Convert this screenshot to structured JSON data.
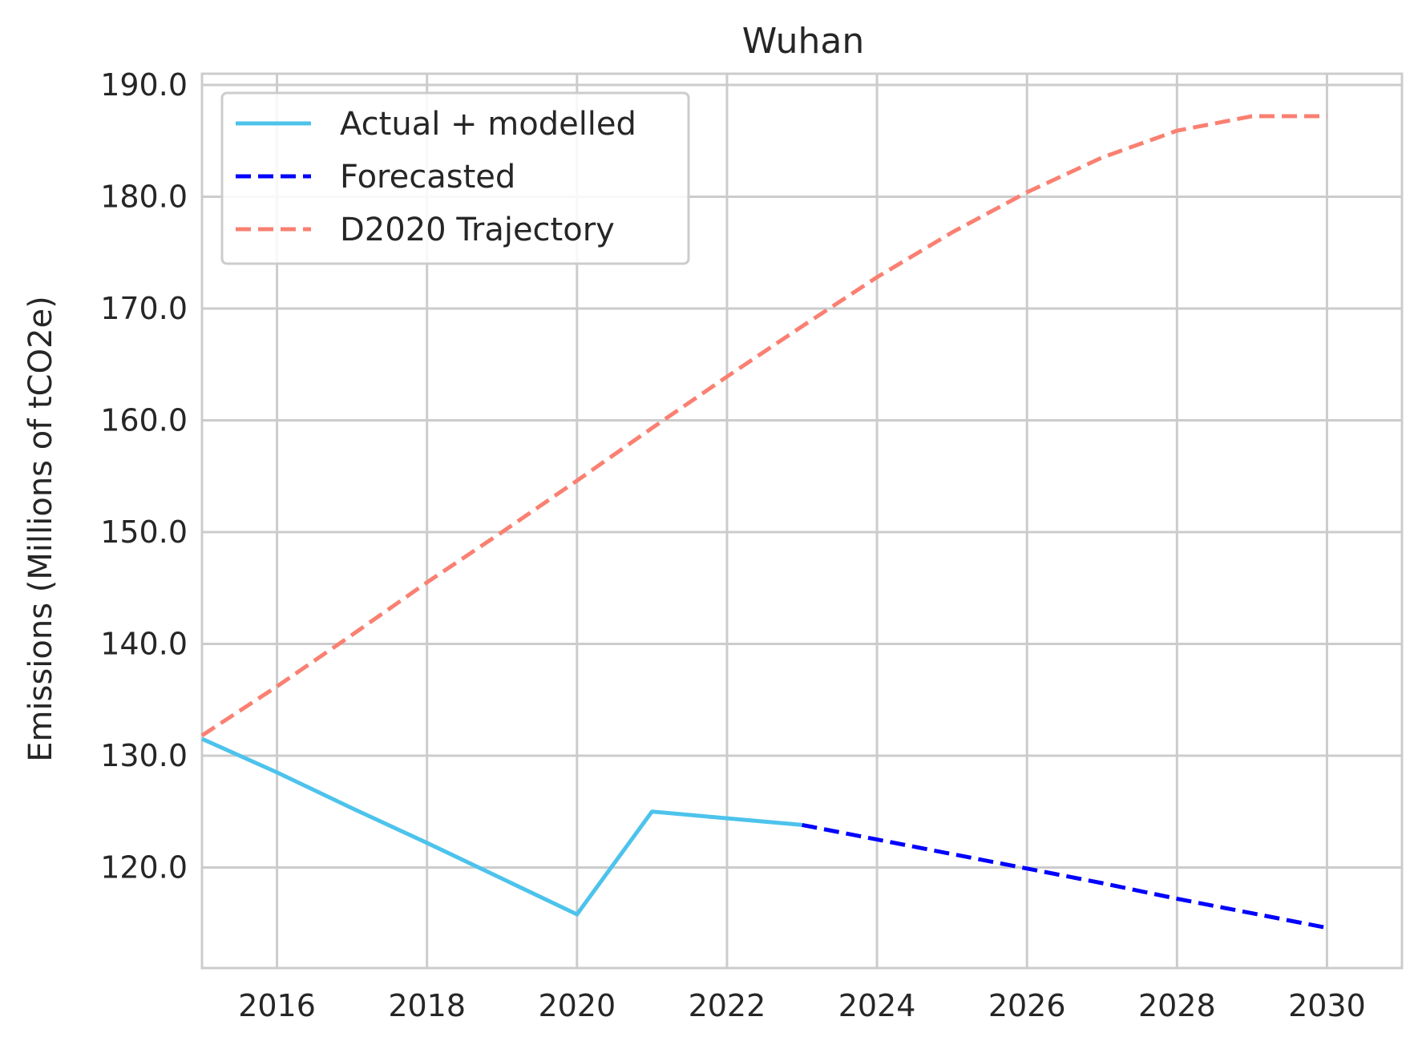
{
  "chart_data": {
    "type": "line",
    "title": "Wuhan",
    "xlabel": "",
    "ylabel": "Emissions (Millions of tCO2e)",
    "xlim": [
      2015,
      2031
    ],
    "ylim": [
      111,
      191
    ],
    "x_ticks": [
      2016,
      2018,
      2020,
      2022,
      2024,
      2026,
      2028,
      2030
    ],
    "y_ticks": [
      120,
      130,
      140,
      150,
      160,
      170,
      180,
      190
    ],
    "y_tick_labels": [
      "120.0",
      "130.0",
      "140.0",
      "150.0",
      "160.0",
      "170.0",
      "180.0",
      "190.0"
    ],
    "grid": true,
    "legend": "top-left",
    "series": [
      {
        "name": "Actual + modelled",
        "style": "solid",
        "color": "#4DC3EC",
        "x": [
          2015,
          2016,
          2017,
          2018,
          2019,
          2020,
          2021,
          2022,
          2023
        ],
        "y": [
          131.5,
          128.5,
          125.3,
          122.2,
          119.0,
          115.8,
          125.0,
          124.4,
          123.8
        ]
      },
      {
        "name": "Forecasted",
        "style": "dashed",
        "color": "#0000FF",
        "x": [
          2023,
          2024,
          2025,
          2026,
          2027,
          2028,
          2029,
          2030
        ],
        "y": [
          123.8,
          122.5,
          121.2,
          119.9,
          118.6,
          117.2,
          115.9,
          114.6
        ]
      },
      {
        "name": "D2020 Trajectory",
        "style": "dashed",
        "color": "#FA8072",
        "x": [
          2015,
          2016,
          2017,
          2018,
          2019,
          2020,
          2021,
          2022,
          2023,
          2024,
          2025,
          2026,
          2027,
          2028,
          2029,
          2030
        ],
        "y": [
          131.8,
          136.2,
          140.8,
          145.5,
          150.0,
          154.6,
          159.3,
          163.9,
          168.4,
          172.8,
          176.8,
          180.4,
          183.5,
          185.9,
          187.2,
          187.2
        ]
      }
    ]
  }
}
